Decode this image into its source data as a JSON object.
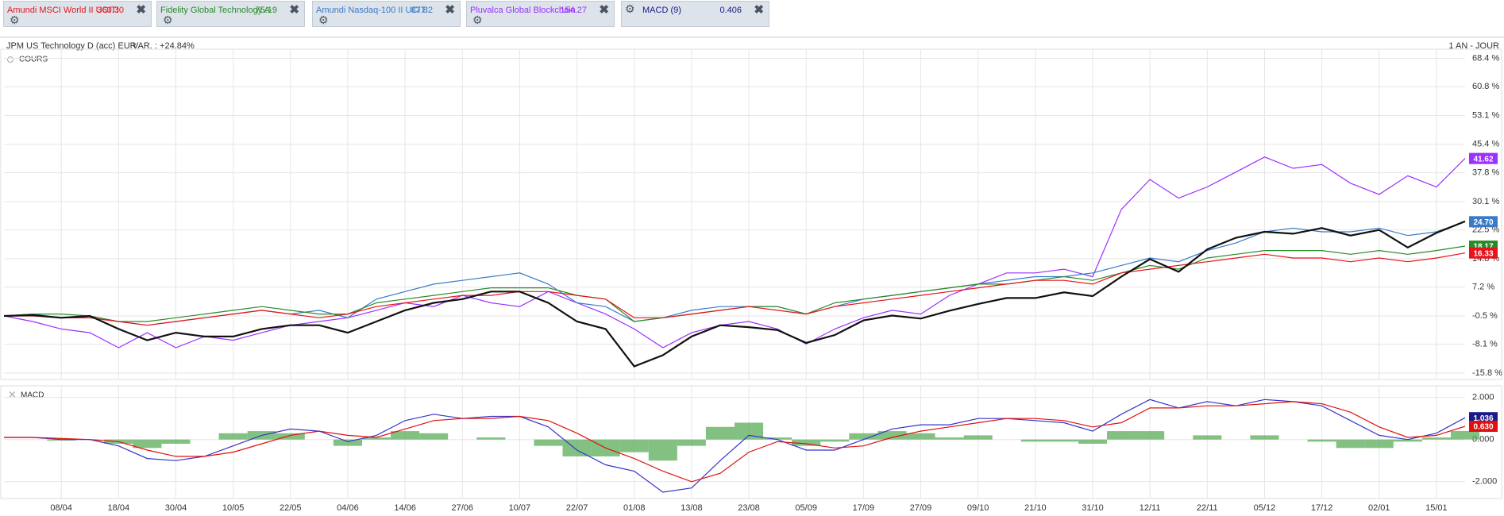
{
  "chart_data": [
    {
      "type": "line",
      "title": "COURS",
      "variation": "VAR. : +24.84%",
      "period": "1 AN - JOUR",
      "categories": [
        null,
        null,
        "08/04",
        null,
        "18/04",
        null,
        "30/04",
        null,
        "10/05",
        null,
        "22/05",
        null,
        "04/06",
        null,
        "14/06",
        null,
        "27/06",
        null,
        "10/07",
        null,
        "22/07",
        null,
        "01/08",
        null,
        "13/08",
        null,
        "23/08",
        null,
        "05/09",
        null,
        "17/09",
        null,
        "27/09",
        null,
        "09/10",
        null,
        "21/10",
        null,
        "31/10",
        null,
        "12/11",
        null,
        "22/11",
        null,
        "05/12",
        null,
        "17/12",
        null,
        "02/01",
        null,
        "15/01",
        null
      ],
      "ylim": [
        -17.5,
        70
      ],
      "yticks": [
        {
          "value": 68.4,
          "label": "68.4 %"
        },
        {
          "value": 60.8,
          "label": "60.8 %"
        },
        {
          "value": 53.1,
          "label": "53.1 %"
        },
        {
          "value": 45.4,
          "label": "45.4 %"
        },
        {
          "value": 37.8,
          "label": "37.8 %"
        },
        {
          "value": 30.1,
          "label": "30.1 %"
        },
        {
          "value": 22.5,
          "label": "22.5 %"
        },
        {
          "value": 14.8,
          "label": "14.8 %"
        },
        {
          "value": 7.2,
          "label": "7.2 %"
        },
        {
          "value": -0.5,
          "label": "-0.5 %"
        },
        {
          "value": -8.1,
          "label": "-8.1 %"
        },
        {
          "value": -15.8,
          "label": "-15.8 %"
        }
      ],
      "grid": true,
      "series": [
        {
          "name": "JPM US Technology D (acc) EUR",
          "color": "#111111",
          "width": 2.2,
          "values": [
            -0.5,
            -0.3,
            -1,
            -0.5,
            -4,
            -7,
            -5,
            -6,
            -6,
            -4,
            -3,
            -3,
            -5,
            -2,
            1,
            3,
            4,
            6,
            6,
            3,
            -2,
            -4,
            -14,
            -11,
            -6,
            -3,
            -3.5,
            -4.3,
            -7.7,
            -5.6,
            -1.7,
            -0.4,
            -1.2,
            0.9,
            2.7,
            4.3,
            4.3,
            5.8,
            4.8,
            10,
            14.7,
            11.3,
            17.3,
            20.4,
            22,
            21.5,
            23,
            21,
            22.5,
            17.8,
            21.7,
            24.8
          ]
        },
        {
          "name": "Amundi MSCI World II UCITS ETF",
          "quote": "360.30",
          "color": "#e8141b",
          "width": 1.2,
          "values": [
            -0.5,
            -0.5,
            -1,
            -1,
            -2,
            -3,
            -2,
            -1,
            0,
            1,
            0,
            -1,
            0,
            2,
            3,
            4,
            5,
            5,
            6,
            6,
            5,
            4,
            -1,
            -1,
            0,
            1,
            2,
            1,
            0,
            2,
            3,
            4,
            5,
            6,
            7,
            8,
            9,
            9,
            8,
            11,
            12,
            13,
            14,
            15,
            16,
            15,
            15,
            14,
            15,
            14,
            15,
            16.33
          ],
          "value_labels": [
            null,
            null,
            null,
            null,
            null,
            null,
            null,
            null,
            null,
            null,
            null,
            null,
            null,
            null,
            null,
            null,
            null,
            null,
            null,
            null,
            null,
            null,
            null,
            null,
            null,
            null,
            null,
            null,
            null,
            null,
            null,
            null,
            null,
            null,
            null,
            null,
            null,
            null,
            null,
            null,
            null,
            null,
            null,
            null,
            null,
            null,
            null,
            null,
            null,
            null,
            null,
            "16.33"
          ]
        },
        {
          "name": "Fidelity Global Technology A-Dis-EUR",
          "quote": "75.19",
          "color": "#2a8a2a",
          "width": 1.2,
          "values": [
            -0.5,
            0,
            0,
            -0.5,
            -2,
            -2,
            -1,
            0,
            1,
            2,
            1,
            0,
            0,
            3,
            4,
            5,
            6,
            7,
            7,
            7,
            5,
            4,
            -2,
            -1,
            0,
            1,
            2,
            2,
            0,
            3,
            4,
            5,
            6,
            7,
            8,
            8,
            9,
            10,
            9,
            11,
            13,
            12,
            15,
            16,
            17,
            17,
            17,
            16,
            17,
            16,
            17,
            18.17
          ],
          "value_labels": [
            null,
            null,
            null,
            null,
            null,
            null,
            null,
            null,
            null,
            null,
            null,
            null,
            null,
            null,
            null,
            null,
            null,
            null,
            null,
            null,
            null,
            null,
            null,
            null,
            null,
            null,
            null,
            null,
            null,
            null,
            null,
            null,
            null,
            null,
            null,
            null,
            null,
            null,
            null,
            null,
            null,
            null,
            null,
            null,
            null,
            null,
            null,
            null,
            null,
            null,
            null,
            "18.17"
          ]
        },
        {
          "name": "Amundi Nasdaq-100 II UCITS ETF Acc",
          "quote": "87.82",
          "color": "#3a7ac8",
          "width": 1.2,
          "values": [
            -0.5,
            0,
            -1,
            -1,
            -2,
            -3,
            -2,
            -1,
            0,
            1,
            0,
            1,
            -1,
            4,
            6,
            8,
            9,
            10,
            11,
            8,
            3,
            2,
            -2,
            -1,
            1,
            2,
            2,
            2,
            0,
            2,
            4,
            5,
            6,
            7,
            8,
            9,
            10,
            10,
            11,
            13,
            15,
            14,
            17,
            19,
            22,
            23,
            22,
            22,
            23,
            21,
            22,
            24.7
          ],
          "value_labels": [
            null,
            null,
            null,
            null,
            null,
            null,
            null,
            null,
            null,
            null,
            null,
            null,
            null,
            null,
            null,
            null,
            null,
            null,
            null,
            null,
            null,
            null,
            null,
            null,
            null,
            null,
            null,
            null,
            null,
            null,
            null,
            null,
            null,
            null,
            null,
            null,
            null,
            null,
            null,
            null,
            null,
            null,
            null,
            null,
            null,
            null,
            null,
            null,
            null,
            null,
            null,
            "24.70"
          ]
        },
        {
          "name": "Pluvalca Global Blockchain",
          "quote": "154.27",
          "color": "#9b30ff",
          "width": 1.2,
          "values": [
            -0.5,
            -2,
            -4,
            -5,
            -9,
            -5,
            -9,
            -6,
            -7,
            -5,
            -3,
            -2,
            -1,
            1,
            3,
            2,
            5,
            3,
            2,
            6,
            3,
            0,
            -4,
            -9,
            -5,
            -3,
            -2,
            -4,
            -8,
            -4,
            -1,
            1,
            0,
            5,
            8,
            11,
            11,
            12,
            10,
            28,
            36,
            31,
            34,
            38,
            42,
            39,
            40,
            35,
            32,
            37,
            34,
            41.62
          ],
          "value_labels": [
            null,
            null,
            null,
            null,
            null,
            null,
            null,
            null,
            null,
            null,
            null,
            null,
            null,
            null,
            null,
            null,
            null,
            null,
            null,
            null,
            null,
            null,
            null,
            null,
            null,
            null,
            null,
            null,
            null,
            null,
            null,
            null,
            null,
            null,
            null,
            null,
            null,
            null,
            null,
            null,
            null,
            null,
            null,
            null,
            null,
            null,
            null,
            null,
            null,
            null,
            null,
            "41.62"
          ]
        }
      ]
    },
    {
      "type": "macd",
      "title": "MACD",
      "indicator": "MACD (9)",
      "indicator_value": "0.406",
      "ylim": [
        -2.8,
        2.4
      ],
      "yticks": [
        {
          "value": 2,
          "label": "2.000"
        },
        {
          "value": 0,
          "label": "0.000"
        },
        {
          "value": -2,
          "label": "-2.000"
        }
      ],
      "grid": true,
      "series": [
        {
          "style": "bars",
          "color": "#5aac5a",
          "values": [
            0,
            0,
            -0.05,
            0,
            -0.2,
            -0.4,
            -0.2,
            0,
            0.3,
            0.4,
            0.3,
            0,
            -0.3,
            0.1,
            0.4,
            0.3,
            0,
            0.1,
            0,
            -0.3,
            -0.8,
            -0.8,
            -0.6,
            -1.0,
            -0.3,
            0.6,
            0.8,
            0.1,
            -0.3,
            -0.1,
            0.3,
            0.4,
            0.3,
            0.1,
            0.2,
            0,
            -0.1,
            -0.1,
            -0.2,
            0.4,
            0.4,
            0,
            0.2,
            0,
            0.2,
            0,
            -0.1,
            -0.4,
            -0.4,
            -0.1,
            0.1,
            0.406
          ]
        },
        {
          "style": "line",
          "color": "#3535c8",
          "label_color": "#1a1a8a",
          "values": [
            0.1,
            0.1,
            0,
            0,
            -0.3,
            -0.9,
            -1.0,
            -0.8,
            -0.3,
            0.2,
            0.5,
            0.4,
            -0.1,
            0.2,
            0.9,
            1.2,
            1.0,
            1.1,
            1.1,
            0.6,
            -0.5,
            -1.2,
            -1.5,
            -2.5,
            -2.3,
            -1.0,
            0.2,
            0.0,
            -0.5,
            -0.5,
            0.0,
            0.5,
            0.7,
            0.7,
            1.0,
            1.0,
            0.9,
            0.8,
            0.4,
            1.2,
            1.9,
            1.5,
            1.8,
            1.6,
            1.9,
            1.8,
            1.6,
            0.9,
            0.2,
            0.0,
            0.3,
            1.036
          ],
          "value_labels": [
            null,
            null,
            null,
            null,
            null,
            null,
            null,
            null,
            null,
            null,
            null,
            null,
            null,
            null,
            null,
            null,
            null,
            null,
            null,
            null,
            null,
            null,
            null,
            null,
            null,
            null,
            null,
            null,
            null,
            null,
            null,
            null,
            null,
            null,
            null,
            null,
            null,
            null,
            null,
            null,
            null,
            null,
            null,
            null,
            null,
            null,
            null,
            null,
            null,
            null,
            null,
            "1.036"
          ]
        },
        {
          "style": "line",
          "color": "#e01010",
          "values": [
            0.1,
            0.1,
            0.05,
            0,
            -0.1,
            -0.5,
            -0.8,
            -0.8,
            -0.6,
            -0.2,
            0.2,
            0.4,
            0.2,
            0.1,
            0.5,
            0.9,
            1.0,
            1.0,
            1.1,
            0.9,
            0.3,
            -0.4,
            -0.9,
            -1.5,
            -2.0,
            -1.6,
            -0.6,
            -0.1,
            -0.2,
            -0.4,
            -0.3,
            0.1,
            0.4,
            0.6,
            0.8,
            1.0,
            1.0,
            0.9,
            0.6,
            0.8,
            1.5,
            1.5,
            1.6,
            1.6,
            1.7,
            1.8,
            1.7,
            1.3,
            0.6,
            0.1,
            0.2,
            0.63
          ],
          "value_labels": [
            null,
            null,
            null,
            null,
            null,
            null,
            null,
            null,
            null,
            null,
            null,
            null,
            null,
            null,
            null,
            null,
            null,
            null,
            null,
            null,
            null,
            null,
            null,
            null,
            null,
            null,
            null,
            null,
            null,
            null,
            null,
            null,
            null,
            null,
            null,
            null,
            null,
            null,
            null,
            null,
            null,
            null,
            null,
            null,
            null,
            null,
            null,
            null,
            null,
            null,
            null,
            "0.630"
          ]
        }
      ]
    }
  ]
}
